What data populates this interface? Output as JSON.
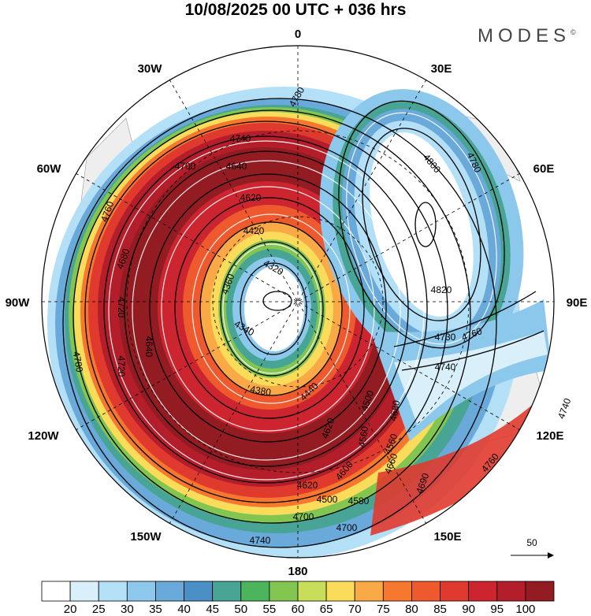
{
  "title": "10/08/2025  00 UTC  + 036 hrs",
  "logo": "MODES",
  "logo_mark": "©",
  "longitude_labels": {
    "n": "0",
    "e30": "30E",
    "e60": "60E",
    "e90": "90E",
    "e120": "120E",
    "e150": "150E",
    "s": "180",
    "w150": "150W",
    "w120": "120W",
    "w90": "90W",
    "w60": "60W",
    "w30": "30W"
  },
  "contour_labels": [
    "4780",
    "4740",
    "4700",
    "4640",
    "4620",
    "4420",
    "4360",
    "4320",
    "4340",
    "4380",
    "4440",
    "4500",
    "4560",
    "4600",
    "4620",
    "4660",
    "4700",
    "4740",
    "4780",
    "4720",
    "4760",
    "4680",
    "4800",
    "4780",
    "4820",
    "4730",
    "4760",
    "4740",
    "4680",
    "4690",
    "4580",
    "4560",
    "4620",
    "4700",
    "4760",
    "4740",
    "4720",
    "4640",
    "4500"
  ],
  "vector_reference": {
    "label": "50"
  },
  "colorbar": {
    "labels": [
      "20",
      "25",
      "30",
      "35",
      "40",
      "45",
      "50",
      "55",
      "60",
      "65",
      "70",
      "75",
      "80",
      "85",
      "90",
      "95",
      "100"
    ],
    "colors": [
      "#ffffff",
      "#d9f0fb",
      "#b3e0f7",
      "#8cc8ec",
      "#6aaadb",
      "#4a8fc6",
      "#48a595",
      "#4cb55c",
      "#82c550",
      "#c8de5a",
      "#fbdc5a",
      "#f9a945",
      "#f6782f",
      "#ee5a2d",
      "#e03a2e",
      "#cc2530",
      "#b31e2a",
      "#931b22"
    ]
  }
}
